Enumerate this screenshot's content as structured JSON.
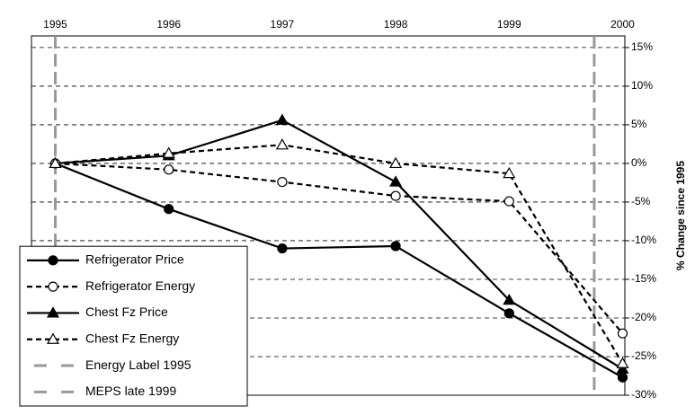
{
  "chart_data": {
    "type": "line",
    "y_axis_label": "% Change since 1995",
    "x": [
      1995,
      1996,
      1997,
      1998,
      1999,
      2000
    ],
    "xlim": [
      1994.79,
      2000.02
    ],
    "xticks": [
      1995,
      1996,
      1997,
      1998,
      1999,
      2000
    ],
    "ylim": [
      -30,
      16.5
    ],
    "yticks": [
      {
        "value": 15,
        "label": "15%"
      },
      {
        "value": 10,
        "label": "10%"
      },
      {
        "value": 5,
        "label": "5%"
      },
      {
        "value": 0,
        "label": "0%"
      },
      {
        "value": -5,
        "label": "-5%"
      },
      {
        "value": -10,
        "label": "-10%"
      },
      {
        "value": -15,
        "label": "-15%"
      },
      {
        "value": -20,
        "label": "-20%"
      },
      {
        "value": -25,
        "label": "-25%"
      },
      {
        "value": -30,
        "label": "-30%"
      }
    ],
    "grid": true,
    "legend": "lower left",
    "series": [
      {
        "name": "Refrigerator Price",
        "color": "#000000",
        "marker": "circle",
        "filled": true,
        "dashed": false,
        "values": [
          0,
          -5.9,
          -11,
          -10.7,
          -19.4,
          -27.7
        ]
      },
      {
        "name": "Refrigerator Energy",
        "color": "#000000",
        "marker": "circle",
        "filled": false,
        "dashed": true,
        "values": [
          0,
          -0.8,
          -2.4,
          -4.2,
          -4.9,
          -22
        ]
      },
      {
        "name": "Chest Fz Price",
        "color": "#000000",
        "marker": "triangle",
        "filled": true,
        "dashed": false,
        "values": [
          0,
          1.0,
          5.6,
          -2.4,
          -17.7,
          -26.6
        ]
      },
      {
        "name": "Chest Fz Energy",
        "color": "#000000",
        "marker": "triangle",
        "filled": false,
        "dashed": true,
        "values": [
          0,
          1.3,
          2.4,
          0,
          -1.3,
          -25.9
        ]
      }
    ],
    "vlines": [
      {
        "name": "Energy Label 1995",
        "x": 1995,
        "color": "#999999"
      },
      {
        "name": "MEPS late 1999",
        "x": 1999.75,
        "color": "#999999"
      }
    ]
  }
}
